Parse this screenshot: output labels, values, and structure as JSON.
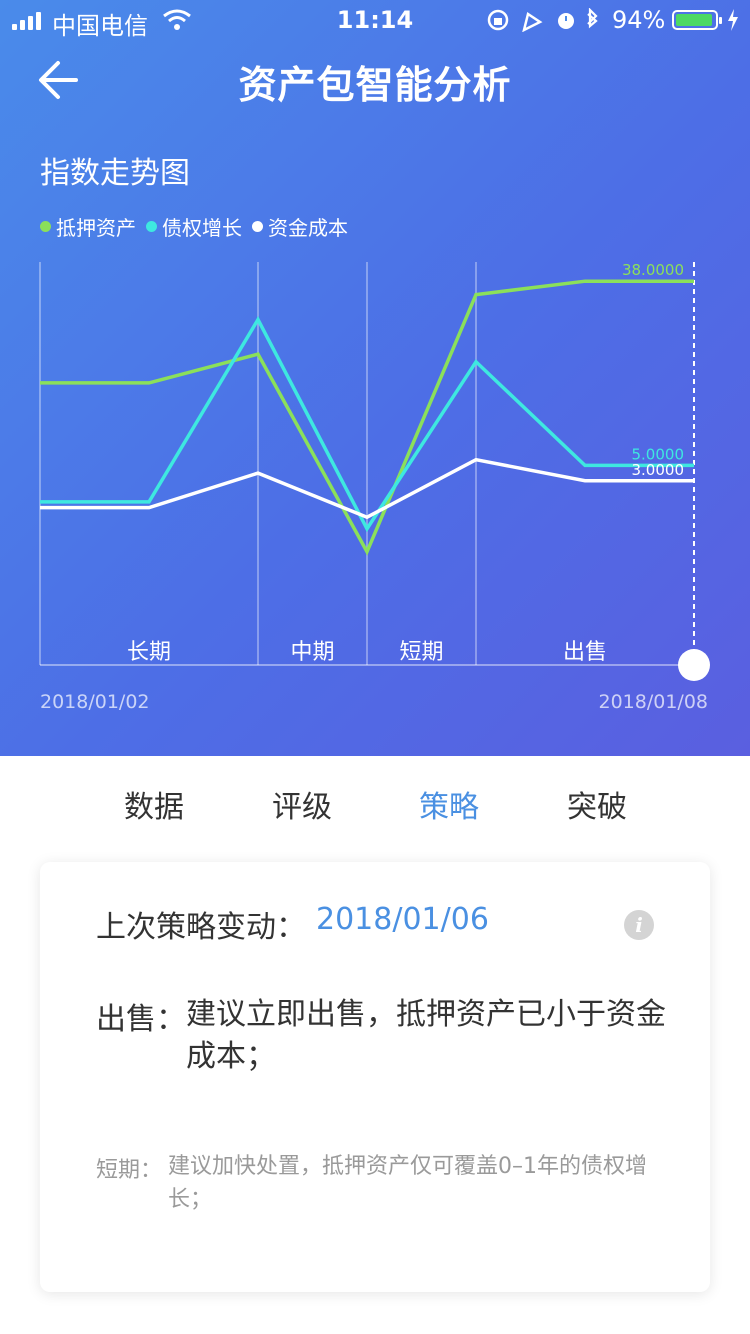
{
  "status_bar": {
    "carrier": "中国电信",
    "time": "11:14",
    "battery_percent": "94%",
    "battery_level": 0.94,
    "signal_bars": 4,
    "icons": [
      "wifi-icon",
      "orientation-lock-icon",
      "location-icon",
      "alarm-icon",
      "bluetooth-icon",
      "battery-icon",
      "charging-icon"
    ]
  },
  "nav": {
    "back_icon": "arrow-left-icon",
    "title": "资产包智能分析"
  },
  "chart_section": {
    "title": "指数走势图"
  },
  "chart_data": {
    "type": "line",
    "title": "指数走势图",
    "legend": [
      {
        "name": "抵押资产",
        "color": "#8be05a"
      },
      {
        "name": "债权增长",
        "color": "#3ee8e0"
      },
      {
        "name": "资金成本",
        "color": "#ffffff"
      }
    ],
    "x_start_label": "2018/01/02",
    "x_end_label": "2018/01/08",
    "zones": [
      "长期",
      "中期",
      "短期",
      "出售"
    ],
    "zone_bounds": [
      0,
      2,
      3,
      4,
      6
    ],
    "x": [
      0,
      1,
      2,
      3,
      4,
      5,
      6
    ],
    "series": [
      {
        "name": "抵押资产",
        "color": "#8be05a",
        "values": [
          0.735,
          0.735,
          0.81,
          0.295,
          0.965,
          1.0,
          1.0
        ],
        "end_label": "38.0000"
      },
      {
        "name": "债权增长",
        "color": "#3ee8e0",
        "values": [
          0.425,
          0.425,
          0.9,
          0.355,
          0.79,
          0.52,
          0.52
        ],
        "end_label": "5.0000"
      },
      {
        "name": "资金成本",
        "color": "#ffffff",
        "values": [
          0.41,
          0.41,
          0.5,
          0.385,
          0.535,
          0.48,
          0.48
        ],
        "end_label": "3.0000"
      }
    ],
    "ylim": [
      0,
      1.05
    ]
  },
  "tabs": [
    {
      "label": "数据",
      "active": false
    },
    {
      "label": "评级",
      "active": false
    },
    {
      "label": "策略",
      "active": true
    },
    {
      "label": "突破",
      "active": false
    }
  ],
  "card": {
    "last_change_label": "上次策略变动：",
    "last_change_date": "2018/01/06",
    "info_icon": "info-icon",
    "info_glyph": "i",
    "sell_label": "出售：",
    "sell_text": "建议立即出售，抵押资产已小于资金成本；",
    "short_label": "短期：",
    "short_text": "建议加快处置，抵押资产仅可覆盖0–1年的债权增长；"
  },
  "colors": {
    "accent": "#4a90e2",
    "gradient_start": "#4a8bea",
    "gradient_end": "#5a5fe0"
  }
}
